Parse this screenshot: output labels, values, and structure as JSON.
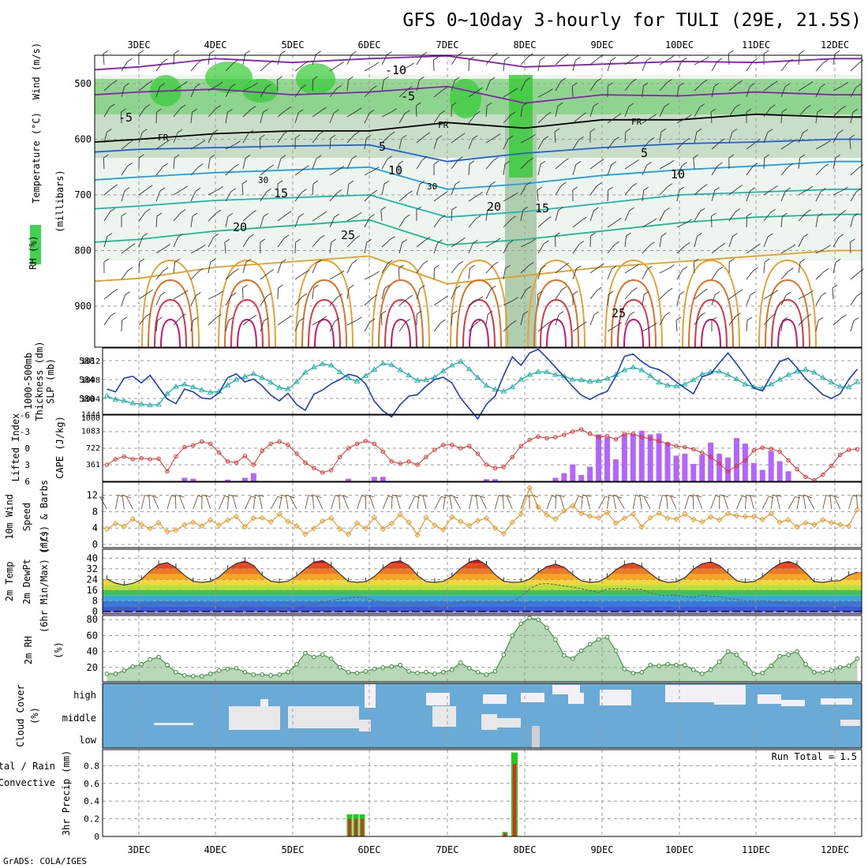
{
  "title": "GFS 0~10day 3-hourly for TULI (29E, 21.5S)",
  "footer": "GrADS: COLA/IGES",
  "colors": {
    "rh_green": "#2ecc40",
    "thickness": "#20b2aa",
    "slp": "#1f3fbf",
    "lifted_index": "#e03030",
    "cape": "#b266ff",
    "wind_speed": "#e69b2e",
    "rh2m": "#2a8a2a",
    "cloud": "#6aaad6",
    "rain_green": "#22cc22",
    "rain_red": "#ee2222"
  },
  "chart_data": [
    {
      "type": "line",
      "panel": "upper-air",
      "x": [
        "3DEC",
        "4DEC",
        "5DEC",
        "6DEC",
        "7DEC",
        "8DEC",
        "9DEC",
        "10DEC",
        "11DEC",
        "12DEC"
      ],
      "ylabel_parts": [
        "RH (%)",
        "Temperature (°C)",
        "Wind (m/s)",
        "(millibars)"
      ],
      "yticks": [
        "500",
        "600",
        "700",
        "800",
        "900"
      ],
      "contour_labels": [
        "-10",
        "-5",
        "-5",
        "FR",
        "FR",
        "FR",
        "5",
        "5",
        "10",
        "10",
        "15",
        "15",
        "20",
        "20",
        "25",
        "25",
        "30",
        "30"
      ],
      "series": [
        {
          "name": "-10",
          "values": [
            470,
            455,
            462,
            455,
            450,
            470,
            465,
            460,
            462,
            455
          ]
        },
        {
          "name": "-5",
          "values": [
            515,
            510,
            520,
            515,
            505,
            535,
            520,
            522,
            515,
            520
          ]
        },
        {
          "name": "FR",
          "values": [
            600,
            590,
            585,
            585,
            570,
            580,
            565,
            565,
            555,
            560
          ]
        },
        {
          "name": "5",
          "values": [
            618,
            615,
            612,
            610,
            640,
            625,
            615,
            608,
            605,
            600
          ]
        },
        {
          "name": "10",
          "values": [
            668,
            660,
            655,
            650,
            690,
            680,
            665,
            655,
            648,
            640
          ]
        },
        {
          "name": "15",
          "values": [
            720,
            710,
            705,
            700,
            740,
            730,
            715,
            700,
            695,
            690
          ]
        },
        {
          "name": "20",
          "values": [
            780,
            765,
            755,
            745,
            790,
            780,
            765,
            750,
            740,
            735
          ]
        },
        {
          "name": "25",
          "values": [
            850,
            830,
            820,
            810,
            860,
            845,
            830,
            820,
            810,
            800
          ]
        }
      ]
    },
    {
      "type": "line",
      "panel": "thickness-slp",
      "ylabel": [
        "1000-500mb",
        "Thickness (dm)",
        "SLP (mb)"
      ],
      "yticks_left": [
        "588",
        "584",
        "580"
      ],
      "yticks_right": [
        "1012",
        "1008",
        "1004",
        "1000"
      ],
      "series": [
        {
          "name": "Thickness",
          "axis": "left",
          "values": [
            580.5,
            579.8,
            579.5,
            579.0,
            578.8,
            578.6,
            578.7,
            581.0,
            582.5,
            583.0,
            582.4,
            581.8,
            581.3,
            581.5,
            582.8,
            584.0,
            584.6,
            585.2,
            584.4,
            583.4,
            582.3,
            582.0,
            583.5,
            585.5,
            586.6,
            587.3,
            587.0,
            585.6,
            584.3,
            583.6,
            584.8,
            586.1,
            587.4,
            587.1,
            586.0,
            584.9,
            583.8,
            583.9,
            584.5,
            585.8,
            587.0,
            587.8,
            586.2,
            584.4,
            582.7,
            581.9,
            581.5,
            582.4,
            584.0,
            585.0,
            585.6,
            585.6,
            585.0,
            584.7,
            584.0,
            583.9,
            583.6,
            583.7,
            584.2,
            585.0,
            586.0,
            586.6,
            586.0,
            584.8,
            583.4,
            582.8,
            582.6,
            583.0,
            583.9,
            585.1,
            585.6,
            585.7,
            585.0,
            584.1,
            583.0,
            582.4,
            582.2,
            583.0,
            584.0,
            585.0,
            585.7,
            586.1,
            585.5,
            584.4,
            583.4,
            582.5,
            582.4,
            583.5
          ]
        },
        {
          "name": "SLP",
          "axis": "right",
          "values": [
            1006.0,
            1005.4,
            1008.3,
            1008.7,
            1007.3,
            1008.9,
            1006.4,
            1003.9,
            1002.9,
            1006.0,
            1005.4,
            1004.1,
            1003.9,
            1005.2,
            1008.4,
            1009.2,
            1007.5,
            1008.1,
            1006.7,
            1004.7,
            1003.5,
            1005.1,
            1002.7,
            1001.5,
            1004.9,
            1005.8,
            1007.1,
            1008.0,
            1009.1,
            1008.7,
            1007.1,
            1003.4,
            1001.4,
            1000.1,
            1002.7,
            1004.5,
            1004.8,
            1006.6,
            1008.0,
            1008.5,
            1007.3,
            1004.1,
            1001.9,
            999.7,
            1002.8,
            1004.5,
            1008.9,
            1012.8,
            1011.0,
            1013.6,
            1014.4,
            1012.6,
            1010.6,
            1008.6,
            1006.5,
            1004.7,
            1003.8,
            1004.8,
            1005.5,
            1008.7,
            1012.9,
            1013.4,
            1011.8,
            1010.6,
            1010.1,
            1009.0,
            1007.5,
            1006.2,
            1005.0,
            1008.6,
            1009.2,
            1011.5,
            1013.6,
            1011.3,
            1008.8,
            1006.2,
            1005.6,
            1008.8,
            1011.8,
            1012.5,
            1010.5,
            1008.2,
            1006.5,
            1004.8,
            1004.0,
            1005.0,
            1008.0,
            1010.2
          ]
        }
      ]
    },
    {
      "type": "bar",
      "panel": "cape-lifted-index",
      "ylabel": [
        "Lifted Index",
        "CAPE (J/kg)"
      ],
      "yticks_left": [
        "-6",
        "-3",
        "0",
        "3",
        "6"
      ],
      "yticks_right": [
        "1444",
        "1083",
        "722",
        "361"
      ],
      "series": [
        {
          "name": "Lifted Index",
          "axis": "left",
          "values": [
            3.0,
            2.0,
            1.5,
            2.0,
            1.8,
            2.0,
            1.9,
            4.2,
            1.5,
            -0.2,
            -0.5,
            -1.2,
            -0.8,
            0.8,
            2.4,
            2.6,
            1.4,
            3.0,
            0.5,
            -0.8,
            -1.2,
            -0.6,
            1.0,
            2.6,
            3.6,
            4.4,
            4.0,
            1.6,
            0.0,
            -0.8,
            -1.3,
            -0.8,
            0.6,
            2.4,
            2.8,
            2.4,
            3.0,
            1.6,
            0.3,
            -0.6,
            -0.6,
            0.0,
            -0.4,
            1.0,
            3.0,
            3.6,
            3.4,
            1.6,
            -0.4,
            -1.5,
            -2.1,
            -1.8,
            -2.0,
            -2.4,
            -3.0,
            -3.4,
            -2.6,
            -2.0,
            -2.2,
            -1.6,
            -2.6,
            -2.6,
            -2.0,
            -1.7,
            -1.3,
            -0.8,
            -0.4,
            -0.2,
            0.2,
            0.8,
            1.6,
            2.8,
            4.2,
            3.2,
            2.2,
            0.4,
            -0.1,
            0.1,
            0.6,
            2.2,
            3.8,
            5.2,
            5.8,
            4.8,
            3.2,
            1.2,
            0.3,
            0.2
          ]
        },
        {
          "name": "CAPE",
          "axis": "right",
          "values": [
            0,
            0,
            0,
            0,
            0,
            0,
            0,
            0,
            0,
            60,
            40,
            0,
            0,
            0,
            20,
            0,
            60,
            160,
            0,
            0,
            0,
            0,
            0,
            0,
            0,
            0,
            0,
            0,
            40,
            0,
            0,
            80,
            80,
            0,
            0,
            0,
            0,
            0,
            0,
            0,
            0,
            0,
            0,
            0,
            30,
            30,
            0,
            0,
            0,
            0,
            0,
            0,
            60,
            160,
            350,
            120,
            300,
            1000,
            930,
            460,
            1000,
            1000,
            1080,
            1000,
            1020,
            820,
            540,
            580,
            360,
            560,
            820,
            580,
            500,
            920,
            800,
            380,
            230,
            640,
            420,
            200,
            0,
            0,
            0,
            0,
            0,
            0,
            0,
            0
          ]
        }
      ]
    },
    {
      "type": "line",
      "panel": "wind10m",
      "ylabel": [
        "10m Wind",
        "Speed",
        "(m/s) & Barbs"
      ],
      "yticks": [
        "12",
        "8",
        "4",
        "0"
      ],
      "series": [
        {
          "name": "Speed",
          "values": [
            3.8,
            5.1,
            4.4,
            6.2,
            4.8,
            3.9,
            5.3,
            3.1,
            3.5,
            4.8,
            5.4,
            4.5,
            6.0,
            4.7,
            5.9,
            6.8,
            4.3,
            6.4,
            6.5,
            5.5,
            7.4,
            5.6,
            4.5,
            2.5,
            3.9,
            5.7,
            6.4,
            3.8,
            2.5,
            5.2,
            3.9,
            6.6,
            3.8,
            5.1,
            7.3,
            5.4,
            2.3,
            6.6,
            4.7,
            3.6,
            6.7,
            5.6,
            4.6,
            5.8,
            6.4,
            4.0,
            2.6,
            5.4,
            7.4,
            13.8,
            9.1,
            7.2,
            6.2,
            8.2,
            9.4,
            7.6,
            6.9,
            6.5,
            7.8,
            5.2,
            6.4,
            7.4,
            4.3,
            6.5,
            7.6,
            6.4,
            6.2,
            7.4,
            6.1,
            5.5,
            6.7,
            6.0,
            7.5,
            7.0,
            6.8,
            6.8,
            6.1,
            7.5,
            5.4,
            6.0,
            4.3,
            5.3,
            4.8,
            6.0,
            5.3,
            4.8,
            4.5,
            8.5
          ]
        }
      ]
    },
    {
      "type": "area",
      "panel": "temp2m",
      "ylabel": [
        "2m Temp",
        "2m DewPt",
        "(6hr Min/Max) (°C)"
      ],
      "yticks": [
        "40",
        "32",
        "24",
        "16",
        "8",
        "0"
      ],
      "series": [
        {
          "name": "Temp",
          "values": [
            24.3,
            21.3,
            19.9,
            21.1,
            24.1,
            30.4,
            35.3,
            36.7,
            32.9,
            27.1,
            22.6,
            21.9,
            22.5,
            26.0,
            31.7,
            36.0,
            37.8,
            34.6,
            27.1,
            22.8,
            21.9,
            22.7,
            26.6,
            32.2,
            37.1,
            38.2,
            34.5,
            28.2,
            22.6,
            21.9,
            22.4,
            26.2,
            32.3,
            36.9,
            38.0,
            34.5,
            27.1,
            22.4,
            21.9,
            22.6,
            26.2,
            32.3,
            37.1,
            38.8,
            34.9,
            27.7,
            22.7,
            21.9,
            22.1,
            24.2,
            29.5,
            33.7,
            35.5,
            33.2,
            27.7,
            23.1,
            21.9,
            22.4,
            25.7,
            31.3,
            35.1,
            36.4,
            33.8,
            28.6,
            23.6,
            21.9,
            22.3,
            25.3,
            31.7,
            35.8,
            37.2,
            34.5,
            28.9,
            23.1,
            21.9,
            22.5,
            26.0,
            31.6,
            35.9,
            37.6,
            35.2,
            29.2,
            22.4,
            21.9,
            22.9,
            23.2,
            27.2,
            29.5
          ]
        },
        {
          "name": "DewPt",
          "values": [
            3.2,
            2.7,
            2.5,
            3.1,
            4.0,
            5.5,
            6.9,
            6.2,
            5.2,
            5.7,
            6.5,
            5.1,
            5.2,
            3.7,
            2.7,
            3.0,
            4.2,
            5.1,
            4.3,
            2.9,
            2.4,
            3.3,
            3.6,
            4.3,
            5.1,
            6.8,
            8.2,
            9.3,
            10.2,
            10.8,
            10.3,
            8.3,
            6.2,
            5.8,
            4.9,
            5.5,
            4.7,
            4.6,
            3.7,
            3.6,
            5.0,
            6.6,
            7.8,
            7.3,
            7.1,
            7.3,
            6.7,
            7.7,
            11.1,
            16.9,
            20.4,
            21.0,
            20.2,
            19.2,
            18.3,
            17.1,
            15.8,
            14.4,
            17.0,
            16.9,
            17.4,
            16.5,
            16.7,
            13.8,
            12.3,
            12.2,
            12.2,
            11.2,
            10.7,
            12.4,
            11.5,
            11.1,
            9.7,
            9.1,
            8.0,
            7.7,
            8.0,
            7.5,
            6.7,
            6.1,
            5.9,
            6.2,
            5.4,
            4.8,
            4.5,
            4.5,
            4.3,
            7.7
          ]
        }
      ]
    },
    {
      "type": "area",
      "panel": "rh2m",
      "ylabel": [
        "2m RH",
        "(%)"
      ],
      "yticks": [
        "80",
        "60",
        "40",
        "20"
      ],
      "series": [
        {
          "name": "2m RH",
          "values": [
            12,
            12,
            16,
            21,
            24,
            30,
            33,
            23,
            14,
            10,
            9,
            9,
            12,
            16,
            18,
            19,
            14,
            11,
            11,
            10,
            11,
            14,
            24,
            38,
            33,
            36,
            31,
            20,
            14,
            13,
            15,
            18,
            20,
            21,
            23,
            15,
            13,
            14,
            12,
            14,
            17,
            26,
            19,
            14,
            11,
            15,
            36,
            60,
            75,
            82,
            80,
            70,
            55,
            35,
            31,
            41,
            49,
            55,
            58,
            41,
            18,
            13,
            14,
            23,
            22,
            24,
            23,
            23,
            17,
            12,
            17,
            27,
            40,
            36,
            25,
            12,
            13,
            22,
            34,
            36,
            40,
            24,
            14,
            14,
            16,
            20,
            22,
            31
          ]
        }
      ]
    },
    {
      "type": "area",
      "panel": "cloud-cover",
      "ylabel": [
        "Cloud Cover",
        "(%)"
      ],
      "yticks": [
        "high",
        "middle",
        "low"
      ]
    },
    {
      "type": "bar",
      "panel": "precip",
      "ylabel": [
        "Total / Rain",
        "Convective",
        "3hr Precip (mm)"
      ],
      "yticks": [
        "0.8",
        "0.6",
        "0.4",
        "0.2",
        "0"
      ],
      "run_total": "Run Total = 1.5",
      "series": [
        {
          "name": "Total",
          "values": [
            0.25,
            0.25,
            0.25,
            0.05,
            0.95
          ]
        },
        {
          "name": "Convective",
          "values": [
            0.2,
            0.2,
            0.2,
            0.04,
            0.82
          ]
        }
      ]
    }
  ]
}
